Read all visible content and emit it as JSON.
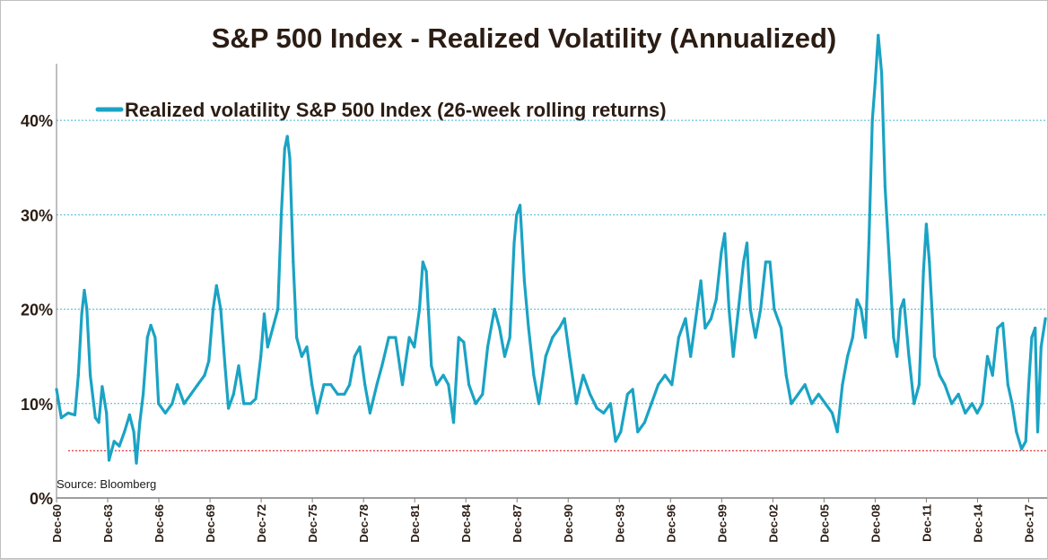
{
  "colors": {
    "series": "#1aa3c4",
    "gridline": "#3fb7d4",
    "axis": "#7f7f7f",
    "reference_line": "#e03030",
    "text": "#2b1d14"
  },
  "chart_data": {
    "type": "line",
    "title": "S&P 500 Index - Realized Volatility (Annualized)",
    "xlabel": "",
    "ylabel": "",
    "legend": {
      "placement": "top-left"
    },
    "grid": {
      "horizontal": true,
      "vertical": false,
      "style": "dotted"
    },
    "ylim": [
      0,
      0.46
    ],
    "y_ticks": [
      {
        "value": 0.0,
        "label": "0%"
      },
      {
        "value": 0.1,
        "label": "10%"
      },
      {
        "value": 0.2,
        "label": "20%"
      },
      {
        "value": 0.3,
        "label": "30%"
      },
      {
        "value": 0.4,
        "label": "40%"
      }
    ],
    "xlim": [
      1960.92,
      2019.0
    ],
    "x_ticks": [
      {
        "value": 1960.92,
        "label": "Dec-60"
      },
      {
        "value": 1963.92,
        "label": "Dec-63"
      },
      {
        "value": 1966.92,
        "label": "Dec-66"
      },
      {
        "value": 1969.92,
        "label": "Dec-69"
      },
      {
        "value": 1972.92,
        "label": "Dec-72"
      },
      {
        "value": 1975.92,
        "label": "Dec-75"
      },
      {
        "value": 1978.92,
        "label": "Dec-78"
      },
      {
        "value": 1981.92,
        "label": "Dec-81"
      },
      {
        "value": 1984.92,
        "label": "Dec-84"
      },
      {
        "value": 1987.92,
        "label": "Dec-87"
      },
      {
        "value": 1990.92,
        "label": "Dec-90"
      },
      {
        "value": 1993.92,
        "label": "Dec-93"
      },
      {
        "value": 1996.92,
        "label": "Dec-96"
      },
      {
        "value": 1999.92,
        "label": "Dec-99"
      },
      {
        "value": 2002.92,
        "label": "Dec-02"
      },
      {
        "value": 2005.92,
        "label": "Dec-05"
      },
      {
        "value": 2008.92,
        "label": "Dec-08"
      },
      {
        "value": 2011.92,
        "label": "Dec-11"
      },
      {
        "value": 2014.92,
        "label": "Dec-14"
      },
      {
        "value": 2017.92,
        "label": "Dec-17"
      }
    ],
    "series": [
      {
        "name": "Realized volatility S&P 500 Index (26-week rolling returns)",
        "points": [
          [
            1960.92,
            0.115
          ],
          [
            1961.2,
            0.085
          ],
          [
            1961.6,
            0.09
          ],
          [
            1962.0,
            0.088
          ],
          [
            1962.2,
            0.13
          ],
          [
            1962.4,
            0.195
          ],
          [
            1962.55,
            0.22
          ],
          [
            1962.7,
            0.2
          ],
          [
            1962.9,
            0.13
          ],
          [
            1963.2,
            0.085
          ],
          [
            1963.4,
            0.08
          ],
          [
            1963.6,
            0.118
          ],
          [
            1963.85,
            0.09
          ],
          [
            1964.0,
            0.04
          ],
          [
            1964.3,
            0.06
          ],
          [
            1964.6,
            0.055
          ],
          [
            1964.9,
            0.07
          ],
          [
            1965.2,
            0.088
          ],
          [
            1965.45,
            0.07
          ],
          [
            1965.6,
            0.037
          ],
          [
            1965.8,
            0.08
          ],
          [
            1966.0,
            0.11
          ],
          [
            1966.25,
            0.17
          ],
          [
            1966.45,
            0.183
          ],
          [
            1966.7,
            0.17
          ],
          [
            1966.9,
            0.1
          ],
          [
            1967.3,
            0.09
          ],
          [
            1967.7,
            0.1
          ],
          [
            1968.0,
            0.12
          ],
          [
            1968.4,
            0.1
          ],
          [
            1968.8,
            0.11
          ],
          [
            1969.2,
            0.12
          ],
          [
            1969.6,
            0.13
          ],
          [
            1969.85,
            0.145
          ],
          [
            1970.1,
            0.2
          ],
          [
            1970.3,
            0.225
          ],
          [
            1970.55,
            0.2
          ],
          [
            1970.8,
            0.14
          ],
          [
            1971.0,
            0.095
          ],
          [
            1971.3,
            0.11
          ],
          [
            1971.6,
            0.14
          ],
          [
            1971.9,
            0.1
          ],
          [
            1972.3,
            0.1
          ],
          [
            1972.6,
            0.105
          ],
          [
            1972.9,
            0.15
          ],
          [
            1973.1,
            0.195
          ],
          [
            1973.3,
            0.16
          ],
          [
            1973.6,
            0.18
          ],
          [
            1973.9,
            0.2
          ],
          [
            1974.1,
            0.3
          ],
          [
            1974.3,
            0.37
          ],
          [
            1974.45,
            0.383
          ],
          [
            1974.6,
            0.36
          ],
          [
            1974.8,
            0.25
          ],
          [
            1975.0,
            0.17
          ],
          [
            1975.3,
            0.15
          ],
          [
            1975.6,
            0.16
          ],
          [
            1975.9,
            0.12
          ],
          [
            1976.2,
            0.09
          ],
          [
            1976.6,
            0.12
          ],
          [
            1977.0,
            0.12
          ],
          [
            1977.4,
            0.11
          ],
          [
            1977.8,
            0.11
          ],
          [
            1978.1,
            0.12
          ],
          [
            1978.4,
            0.15
          ],
          [
            1978.7,
            0.16
          ],
          [
            1979.0,
            0.12
          ],
          [
            1979.3,
            0.09
          ],
          [
            1979.7,
            0.12
          ],
          [
            1980.0,
            0.14
          ],
          [
            1980.4,
            0.17
          ],
          [
            1980.8,
            0.17
          ],
          [
            1981.2,
            0.12
          ],
          [
            1981.6,
            0.17
          ],
          [
            1981.9,
            0.16
          ],
          [
            1982.2,
            0.2
          ],
          [
            1982.4,
            0.25
          ],
          [
            1982.6,
            0.24
          ],
          [
            1982.9,
            0.14
          ],
          [
            1983.2,
            0.12
          ],
          [
            1983.6,
            0.13
          ],
          [
            1983.9,
            0.12
          ],
          [
            1984.2,
            0.08
          ],
          [
            1984.5,
            0.17
          ],
          [
            1984.8,
            0.165
          ],
          [
            1985.1,
            0.12
          ],
          [
            1985.5,
            0.1
          ],
          [
            1985.9,
            0.11
          ],
          [
            1986.2,
            0.16
          ],
          [
            1986.6,
            0.2
          ],
          [
            1986.9,
            0.18
          ],
          [
            1987.2,
            0.15
          ],
          [
            1987.5,
            0.17
          ],
          [
            1987.75,
            0.27
          ],
          [
            1987.9,
            0.3
          ],
          [
            1988.1,
            0.31
          ],
          [
            1988.35,
            0.23
          ],
          [
            1988.6,
            0.18
          ],
          [
            1988.9,
            0.13
          ],
          [
            1989.2,
            0.1
          ],
          [
            1989.6,
            0.15
          ],
          [
            1990.0,
            0.17
          ],
          [
            1990.4,
            0.18
          ],
          [
            1990.7,
            0.19
          ],
          [
            1991.0,
            0.15
          ],
          [
            1991.4,
            0.1
          ],
          [
            1991.8,
            0.13
          ],
          [
            1992.2,
            0.11
          ],
          [
            1992.6,
            0.095
          ],
          [
            1993.0,
            0.09
          ],
          [
            1993.4,
            0.1
          ],
          [
            1993.7,
            0.06
          ],
          [
            1994.0,
            0.07
          ],
          [
            1994.4,
            0.11
          ],
          [
            1994.7,
            0.115
          ],
          [
            1995.0,
            0.07
          ],
          [
            1995.4,
            0.08
          ],
          [
            1995.8,
            0.1
          ],
          [
            1996.2,
            0.12
          ],
          [
            1996.6,
            0.13
          ],
          [
            1997.0,
            0.12
          ],
          [
            1997.4,
            0.17
          ],
          [
            1997.8,
            0.19
          ],
          [
            1998.1,
            0.15
          ],
          [
            1998.4,
            0.19
          ],
          [
            1998.7,
            0.23
          ],
          [
            1998.95,
            0.18
          ],
          [
            1999.3,
            0.19
          ],
          [
            1999.6,
            0.21
          ],
          [
            1999.9,
            0.26
          ],
          [
            2000.1,
            0.28
          ],
          [
            2000.35,
            0.2
          ],
          [
            2000.6,
            0.15
          ],
          [
            2000.9,
            0.2
          ],
          [
            2001.2,
            0.25
          ],
          [
            2001.4,
            0.27
          ],
          [
            2001.6,
            0.2
          ],
          [
            2001.9,
            0.17
          ],
          [
            2002.2,
            0.2
          ],
          [
            2002.5,
            0.25
          ],
          [
            2002.75,
            0.25
          ],
          [
            2003.0,
            0.2
          ],
          [
            2003.4,
            0.18
          ],
          [
            2003.7,
            0.13
          ],
          [
            2004.0,
            0.1
          ],
          [
            2004.4,
            0.11
          ],
          [
            2004.8,
            0.12
          ],
          [
            2005.2,
            0.1
          ],
          [
            2005.6,
            0.11
          ],
          [
            2006.0,
            0.1
          ],
          [
            2006.4,
            0.09
          ],
          [
            2006.7,
            0.07
          ],
          [
            2007.0,
            0.12
          ],
          [
            2007.3,
            0.15
          ],
          [
            2007.6,
            0.17
          ],
          [
            2007.85,
            0.21
          ],
          [
            2008.1,
            0.2
          ],
          [
            2008.35,
            0.17
          ],
          [
            2008.55,
            0.27
          ],
          [
            2008.75,
            0.4
          ],
          [
            2008.92,
            0.44
          ],
          [
            2009.1,
            0.49
          ],
          [
            2009.3,
            0.45
          ],
          [
            2009.5,
            0.33
          ],
          [
            2009.75,
            0.25
          ],
          [
            2010.0,
            0.17
          ],
          [
            2010.2,
            0.15
          ],
          [
            2010.4,
            0.2
          ],
          [
            2010.6,
            0.21
          ],
          [
            2010.9,
            0.15
          ],
          [
            2011.2,
            0.1
          ],
          [
            2011.5,
            0.12
          ],
          [
            2011.75,
            0.24
          ],
          [
            2011.92,
            0.29
          ],
          [
            2012.1,
            0.25
          ],
          [
            2012.4,
            0.15
          ],
          [
            2012.7,
            0.13
          ],
          [
            2013.0,
            0.12
          ],
          [
            2013.4,
            0.1
          ],
          [
            2013.8,
            0.11
          ],
          [
            2014.2,
            0.09
          ],
          [
            2014.6,
            0.1
          ],
          [
            2014.9,
            0.09
          ],
          [
            2015.2,
            0.1
          ],
          [
            2015.5,
            0.15
          ],
          [
            2015.8,
            0.13
          ],
          [
            2016.1,
            0.18
          ],
          [
            2016.4,
            0.185
          ],
          [
            2016.7,
            0.12
          ],
          [
            2016.95,
            0.1
          ],
          [
            2017.2,
            0.07
          ],
          [
            2017.5,
            0.052
          ],
          [
            2017.75,
            0.06
          ],
          [
            2017.92,
            0.12
          ],
          [
            2018.1,
            0.17
          ],
          [
            2018.3,
            0.18
          ],
          [
            2018.45,
            0.07
          ],
          [
            2018.65,
            0.16
          ],
          [
            2018.9,
            0.19
          ]
        ]
      }
    ],
    "reference_line": {
      "y": 0.05,
      "x_start": 1961.6,
      "x_end": 2019.0,
      "style": "dotted"
    },
    "annotations": [
      {
        "text": "Source:  Bloomberg",
        "placement": "bottom-left"
      }
    ]
  }
}
